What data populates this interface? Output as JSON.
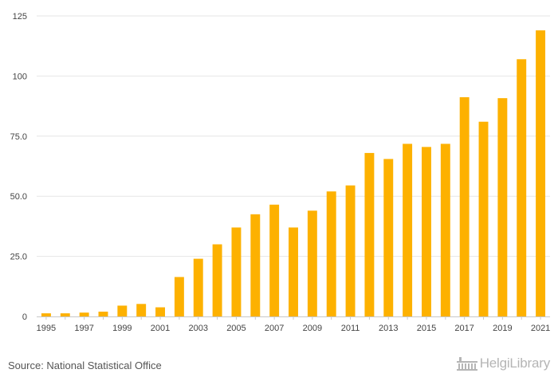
{
  "chart_data": {
    "type": "bar",
    "categories": [
      "1995",
      "1996",
      "1997",
      "1998",
      "1999",
      "2000",
      "2001",
      "2002",
      "2003",
      "2004",
      "2005",
      "2006",
      "2007",
      "2008",
      "2009",
      "2010",
      "2011",
      "2012",
      "2013",
      "2014",
      "2015",
      "2016",
      "2017",
      "2018",
      "2019",
      "2020",
      "2021"
    ],
    "values": [
      1.3,
      1.3,
      1.6,
      2.0,
      4.5,
      5.2,
      3.8,
      16.4,
      24.0,
      30.0,
      37.0,
      42.5,
      46.5,
      37.0,
      44.0,
      52.0,
      54.5,
      68.0,
      65.5,
      71.8,
      70.5,
      71.8,
      91.2,
      81.0,
      90.8,
      107.0,
      119.0
    ],
    "x_tick_labels": [
      "1995",
      "1997",
      "1999",
      "2001",
      "2003",
      "2005",
      "2007",
      "2009",
      "2011",
      "2013",
      "2015",
      "2017",
      "2019",
      "2021"
    ],
    "y_ticks": [
      0,
      25,
      50,
      75,
      100,
      125
    ],
    "y_tick_labels": [
      "0",
      "25.0",
      "50.0",
      "75.0",
      "100",
      "125"
    ],
    "ylim": [
      0,
      125
    ],
    "title": "",
    "xlabel": "",
    "ylabel": "",
    "grid": true,
    "bar_color": "#FDB100",
    "grid_color": "#E6E6E6"
  },
  "footer": {
    "source": "Source: National Statistical Office",
    "logo_text": "HelgiLibrary"
  }
}
